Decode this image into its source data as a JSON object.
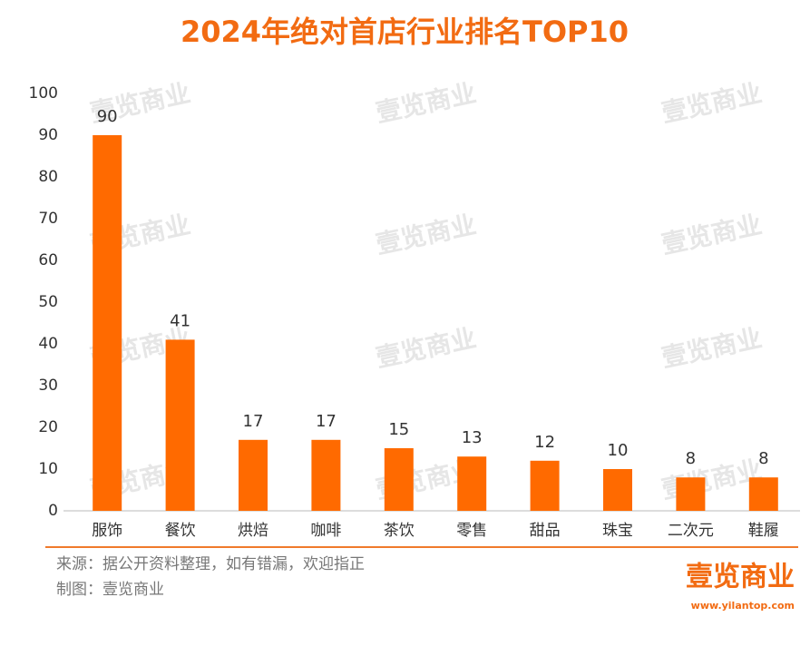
{
  "chart_data": {
    "type": "bar",
    "title": "2024年绝对首店行业排名TOP10",
    "categories": [
      "服饰",
      "餐饮",
      "烘焙",
      "咖啡",
      "茶饮",
      "零售",
      "甜品",
      "珠宝",
      "二次元",
      "鞋履"
    ],
    "values": [
      90,
      41,
      17,
      17,
      15,
      13,
      12,
      10,
      8,
      8
    ],
    "color": "#ff6a00",
    "ylim": [
      0,
      100
    ],
    "yticks": [
      0,
      10,
      20,
      30,
      40,
      50,
      60,
      70,
      80,
      90,
      100
    ],
    "grid": false
  },
  "footer": {
    "source": "来源：据公开资料整理，如有错漏，欢迎指正",
    "maker": "制图：壹览商业",
    "logo": "壹览商业",
    "url": "www.yilantop.com"
  },
  "watermark": "壹览商业"
}
